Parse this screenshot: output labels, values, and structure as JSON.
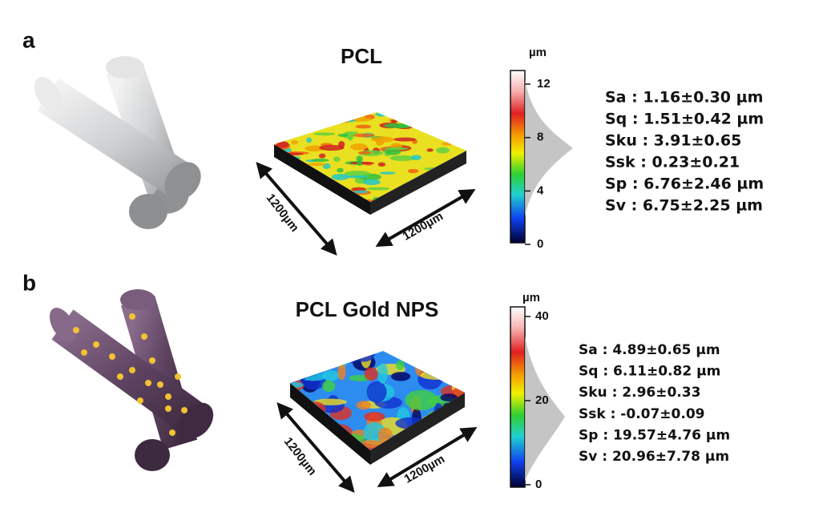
{
  "panels": [
    {
      "label": "a",
      "title": "PCL",
      "dimension_left": "1200µm",
      "dimension_right": "1200µm",
      "colorbar_unit": "µm",
      "colorbar_ticks": [
        12,
        8,
        4,
        0
      ],
      "parameters": [
        "Sa : 1.16±0.30 µm",
        "Sq : 1.51±0.42 µm",
        "Sku : 3.91±0.65",
        "Ssk : 0.23±0.21",
        "Sp : 6.76±2.46 µm",
        "Sv : 6.75±2.25 µm"
      ]
    },
    {
      "label": "b",
      "title": "PCL Gold NPS",
      "dimension_left": "1200µm",
      "dimension_right": "1200µm",
      "colorbar_unit": "µm",
      "colorbar_ticks": [
        40,
        20,
        0
      ],
      "parameters": [
        "Sa : 4.89±0.65 µm",
        "Sq : 6.11±0.82 µm",
        "Sku : 2.96±0.33",
        "Ssk : -0.07±0.09",
        "Sp : 19.57±4.76 µm",
        "Sv : 20.96±7.78 µm"
      ]
    }
  ]
}
